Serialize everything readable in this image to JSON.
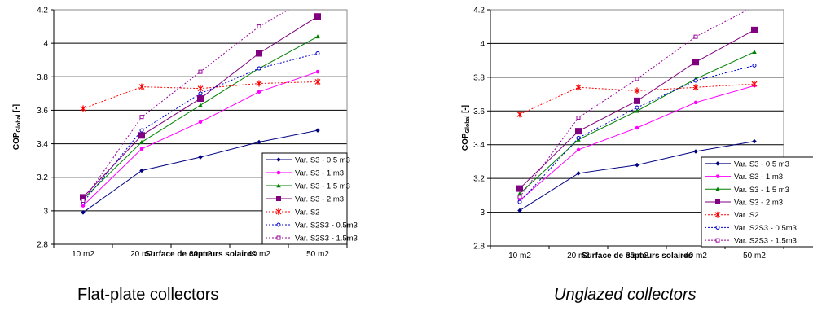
{
  "captions": {
    "left": "Flat-plate collectors",
    "right": "Unglazed collectors"
  },
  "styles": [
    {
      "color": "#000080",
      "dash": "",
      "marker": "diamond",
      "size": 5.5
    },
    {
      "color": "#ff00ff",
      "dash": "",
      "marker": "circle",
      "size": 4.5
    },
    {
      "color": "#008000",
      "dash": "",
      "marker": "triangle",
      "size": 5.5
    },
    {
      "color": "#800080",
      "dash": "",
      "marker": "square",
      "size": 8
    },
    {
      "color": "#ff0000",
      "dash": "2,2",
      "marker": "star",
      "size": 6
    },
    {
      "color": "#0000cc",
      "dash": "2,2",
      "marker": "open-circle",
      "size": 5
    },
    {
      "color": "#990099",
      "dash": "2,2",
      "marker": "open-square",
      "size": 5
    }
  ],
  "chart_data": [
    {
      "type": "line",
      "title": "",
      "xlabel": "Surface de capteurs solaires",
      "ylabel_main": "COP",
      "ylabel_sub": "Global",
      "ylabel_suffix": " [-]",
      "categories": [
        "10 m2",
        "20 m2",
        "30 m2",
        "40 m2",
        "50 m2"
      ],
      "ylim": [
        2.8,
        4.2
      ],
      "yticks": [
        "2.8",
        "3",
        "3.2",
        "3.4",
        "3.6",
        "3.8",
        "4",
        "4.2"
      ],
      "grid": true,
      "legend_position": "bottom-right",
      "series": [
        {
          "name": "Var. S3 - 0.5 m3",
          "values": [
            2.99,
            3.24,
            3.32,
            3.41,
            3.48
          ]
        },
        {
          "name": "Var. S3 - 1 m3",
          "values": [
            3.03,
            3.37,
            3.53,
            3.71,
            3.83
          ]
        },
        {
          "name": "Var. S3 - 1.5 m3",
          "values": [
            3.07,
            3.41,
            3.63,
            3.85,
            4.04
          ]
        },
        {
          "name": "Var. S3 - 2 m3",
          "values": [
            3.08,
            3.45,
            3.67,
            3.94,
            4.16
          ]
        },
        {
          "name": "Var. S2",
          "values": [
            3.61,
            3.74,
            3.73,
            3.76,
            3.77
          ]
        },
        {
          "name": "Var. S2S3 - 0.5m3",
          "values": [
            3.05,
            3.48,
            3.7,
            3.85,
            3.94
          ]
        },
        {
          "name": "Var. S2S3 - 1.5m3",
          "values": [
            3.06,
            3.56,
            3.83,
            4.1,
            4.3
          ]
        }
      ]
    },
    {
      "type": "line",
      "title": "",
      "xlabel": "Surface de capteurs solaires",
      "ylabel_main": "COP",
      "ylabel_sub": "Global",
      "ylabel_suffix": " [-]",
      "categories": [
        "10 m2",
        "20 m2",
        "30 m2",
        "40 m2",
        "50 m2"
      ],
      "ylim": [
        2.8,
        4.2
      ],
      "yticks": [
        "2.8",
        "3",
        "3.2",
        "3.4",
        "3.6",
        "3.8",
        "4",
        "4.2"
      ],
      "grid": true,
      "legend_position": "bottom-right",
      "series": [
        {
          "name": "Var. S3 - 0.5 m3",
          "values": [
            3.01,
            3.23,
            3.28,
            3.36,
            3.42
          ]
        },
        {
          "name": "Var. S3 - 1 m3",
          "values": [
            3.07,
            3.37,
            3.5,
            3.65,
            3.75
          ]
        },
        {
          "name": "Var. S3 - 1.5 m3",
          "values": [
            3.11,
            3.43,
            3.6,
            3.79,
            3.95
          ]
        },
        {
          "name": "Var. S3 - 2 m3",
          "values": [
            3.14,
            3.48,
            3.66,
            3.89,
            4.08
          ]
        },
        {
          "name": "Var. S2",
          "values": [
            3.58,
            3.74,
            3.72,
            3.74,
            3.76
          ]
        },
        {
          "name": "Var. S2S3 - 0.5m3",
          "values": [
            3.06,
            3.44,
            3.62,
            3.78,
            3.87
          ]
        },
        {
          "name": "Var. S2S3 - 1.5m3",
          "values": [
            3.09,
            3.56,
            3.79,
            4.04,
            4.22
          ]
        }
      ]
    }
  ]
}
